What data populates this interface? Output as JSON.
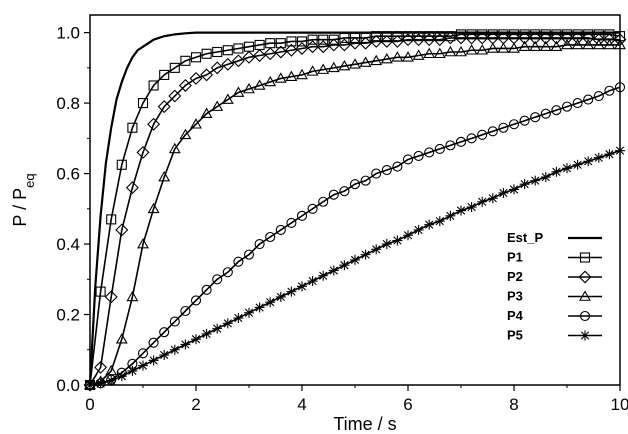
{
  "chart_data": {
    "type": "line",
    "title": "",
    "xlabel": "Time / s",
    "ylabel_main": "P / P",
    "ylabel_sub": "eq",
    "xlim": [
      0,
      10
    ],
    "ylim": [
      0,
      1.05
    ],
    "xticks": [
      0,
      2,
      4,
      6,
      8,
      10
    ],
    "yticks": [
      0.0,
      0.2,
      0.4,
      0.6,
      0.8,
      1.0
    ],
    "xtick_labels": [
      "0",
      "2",
      "4",
      "6",
      "8",
      "10"
    ],
    "ytick_labels": [
      "0.0",
      "0.2",
      "0.4",
      "0.6",
      "0.8",
      "1.0"
    ],
    "grid": false,
    "legend_position": "bottom-right",
    "series": [
      {
        "name": "Est_P",
        "marker": "none",
        "x": [
          0,
          0.1,
          0.2,
          0.3,
          0.4,
          0.5,
          0.6,
          0.7,
          0.8,
          0.9,
          1.0,
          1.2,
          1.4,
          1.6,
          1.8,
          2.0,
          2.5,
          3.0,
          4.0,
          6.0,
          8.0,
          10.0
        ],
        "y": [
          0,
          0.28,
          0.48,
          0.63,
          0.73,
          0.81,
          0.86,
          0.9,
          0.93,
          0.95,
          0.96,
          0.98,
          0.99,
          0.995,
          0.998,
          1.0,
          1.0,
          1.0,
          1.0,
          1.0,
          1.0,
          1.0
        ]
      },
      {
        "name": "P1",
        "marker": "square",
        "x": [
          0,
          0.2,
          0.4,
          0.6,
          0.8,
          1.0,
          1.2,
          1.4,
          1.6,
          1.8,
          2.0,
          2.2,
          2.4,
          2.6,
          2.8,
          3.0,
          3.2,
          3.4,
          3.6,
          3.8,
          4.0,
          4.2,
          4.4,
          4.6,
          4.8,
          5.0,
          5.2,
          5.4,
          5.6,
          5.8,
          6.0,
          6.2,
          6.4,
          6.6,
          6.8,
          7.0,
          7.2,
          7.4,
          7.6,
          7.8,
          8.0,
          8.2,
          8.4,
          8.6,
          8.8,
          9.0,
          9.2,
          9.4,
          9.6,
          9.8,
          10.0
        ],
        "y": [
          0,
          0.265,
          0.47,
          0.625,
          0.73,
          0.8,
          0.85,
          0.88,
          0.9,
          0.92,
          0.93,
          0.94,
          0.945,
          0.95,
          0.955,
          0.96,
          0.965,
          0.97,
          0.97,
          0.975,
          0.975,
          0.98,
          0.98,
          0.98,
          0.985,
          0.985,
          0.985,
          0.99,
          0.99,
          0.99,
          0.99,
          0.99,
          0.99,
          0.99,
          0.99,
          0.995,
          0.995,
          0.995,
          0.995,
          0.995,
          0.995,
          0.995,
          0.995,
          0.995,
          0.995,
          0.995,
          0.995,
          0.995,
          0.995,
          0.995,
          0.99
        ]
      },
      {
        "name": "P2",
        "marker": "diamond",
        "x": [
          0,
          0.2,
          0.4,
          0.6,
          0.8,
          1.0,
          1.2,
          1.4,
          1.6,
          1.8,
          2.0,
          2.2,
          2.4,
          2.6,
          2.8,
          3.0,
          3.2,
          3.4,
          3.6,
          3.8,
          4.0,
          4.2,
          4.4,
          4.6,
          4.8,
          5.0,
          5.2,
          5.4,
          5.6,
          5.8,
          6.0,
          6.2,
          6.4,
          6.6,
          6.8,
          7.0,
          7.2,
          7.4,
          7.6,
          7.8,
          8.0,
          8.2,
          8.4,
          8.6,
          8.8,
          9.0,
          9.2,
          9.4,
          9.6,
          9.8,
          10.0
        ],
        "y": [
          0,
          0.05,
          0.25,
          0.44,
          0.56,
          0.66,
          0.74,
          0.79,
          0.82,
          0.85,
          0.87,
          0.88,
          0.9,
          0.91,
          0.92,
          0.93,
          0.935,
          0.94,
          0.945,
          0.95,
          0.955,
          0.96,
          0.96,
          0.965,
          0.965,
          0.97,
          0.97,
          0.975,
          0.975,
          0.975,
          0.98,
          0.98,
          0.98,
          0.98,
          0.985,
          0.985,
          0.985,
          0.985,
          0.985,
          0.985,
          0.985,
          0.985,
          0.985,
          0.985,
          0.985,
          0.985,
          0.985,
          0.985,
          0.98,
          0.98,
          0.98
        ]
      },
      {
        "name": "P3",
        "marker": "triangle",
        "x": [
          0,
          0.2,
          0.4,
          0.6,
          0.8,
          1.0,
          1.2,
          1.4,
          1.6,
          1.8,
          2.0,
          2.2,
          2.4,
          2.6,
          2.8,
          3.0,
          3.2,
          3.4,
          3.6,
          3.8,
          4.0,
          4.2,
          4.4,
          4.6,
          4.8,
          5.0,
          5.2,
          5.4,
          5.6,
          5.8,
          6.0,
          6.2,
          6.4,
          6.6,
          6.8,
          7.0,
          7.2,
          7.4,
          7.6,
          7.8,
          8.0,
          8.2,
          8.4,
          8.6,
          8.8,
          9.0,
          9.2,
          9.4,
          9.6,
          9.8,
          10.0
        ],
        "y": [
          0,
          0.01,
          0.04,
          0.13,
          0.25,
          0.4,
          0.5,
          0.59,
          0.67,
          0.71,
          0.74,
          0.77,
          0.79,
          0.81,
          0.83,
          0.84,
          0.85,
          0.86,
          0.87,
          0.875,
          0.88,
          0.89,
          0.895,
          0.9,
          0.905,
          0.91,
          0.915,
          0.92,
          0.925,
          0.93,
          0.93,
          0.935,
          0.94,
          0.94,
          0.945,
          0.945,
          0.95,
          0.95,
          0.955,
          0.955,
          0.955,
          0.96,
          0.96,
          0.96,
          0.96,
          0.965,
          0.965,
          0.965,
          0.965,
          0.965,
          0.965
        ]
      },
      {
        "name": "P4",
        "marker": "circle",
        "x": [
          0,
          0.2,
          0.4,
          0.6,
          0.8,
          1.0,
          1.2,
          1.4,
          1.6,
          1.8,
          2.0,
          2.2,
          2.4,
          2.6,
          2.8,
          3.0,
          3.2,
          3.4,
          3.6,
          3.8,
          4.0,
          4.2,
          4.4,
          4.6,
          4.8,
          5.0,
          5.2,
          5.4,
          5.6,
          5.8,
          6.0,
          6.2,
          6.4,
          6.6,
          6.8,
          7.0,
          7.2,
          7.4,
          7.6,
          7.8,
          8.0,
          8.2,
          8.4,
          8.6,
          8.8,
          9.0,
          9.2,
          9.4,
          9.6,
          9.8,
          10.0
        ],
        "y": [
          0,
          0.005,
          0.015,
          0.035,
          0.06,
          0.09,
          0.12,
          0.15,
          0.18,
          0.21,
          0.24,
          0.27,
          0.3,
          0.32,
          0.35,
          0.37,
          0.4,
          0.42,
          0.44,
          0.46,
          0.48,
          0.5,
          0.52,
          0.54,
          0.55,
          0.57,
          0.58,
          0.6,
          0.61,
          0.62,
          0.64,
          0.65,
          0.66,
          0.67,
          0.68,
          0.69,
          0.7,
          0.71,
          0.72,
          0.73,
          0.74,
          0.75,
          0.76,
          0.77,
          0.78,
          0.79,
          0.8,
          0.81,
          0.82,
          0.835,
          0.845
        ]
      },
      {
        "name": "P5",
        "marker": "star",
        "x": [
          0,
          0.2,
          0.4,
          0.6,
          0.8,
          1.0,
          1.2,
          1.4,
          1.6,
          1.8,
          2.0,
          2.2,
          2.4,
          2.6,
          2.8,
          3.0,
          3.2,
          3.4,
          3.6,
          3.8,
          4.0,
          4.2,
          4.4,
          4.6,
          4.8,
          5.0,
          5.2,
          5.4,
          5.6,
          5.8,
          6.0,
          6.2,
          6.4,
          6.6,
          6.8,
          7.0,
          7.2,
          7.4,
          7.6,
          7.8,
          8.0,
          8.2,
          8.4,
          8.6,
          8.8,
          9.0,
          9.2,
          9.4,
          9.6,
          9.8,
          10.0
        ],
        "y": [
          0,
          0.004,
          0.012,
          0.025,
          0.04,
          0.055,
          0.07,
          0.085,
          0.1,
          0.115,
          0.13,
          0.145,
          0.16,
          0.175,
          0.19,
          0.205,
          0.22,
          0.235,
          0.25,
          0.265,
          0.28,
          0.295,
          0.31,
          0.325,
          0.34,
          0.355,
          0.37,
          0.385,
          0.4,
          0.41,
          0.425,
          0.44,
          0.455,
          0.465,
          0.48,
          0.495,
          0.505,
          0.52,
          0.53,
          0.545,
          0.555,
          0.57,
          0.58,
          0.59,
          0.605,
          0.615,
          0.625,
          0.635,
          0.645,
          0.655,
          0.665
        ]
      }
    ]
  }
}
